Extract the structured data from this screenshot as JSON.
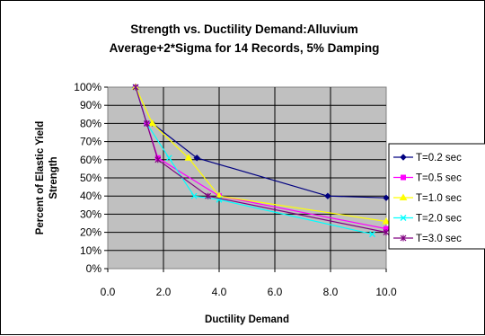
{
  "chart_data": {
    "type": "line",
    "title": "Strength vs. Ductility Demand:Alluvium",
    "subtitle": "Average+2*Sigma for 14 Records, 5% Damping",
    "xlabel": "Ductility Demand",
    "ylabel_line1": "Percent of Elastic Yield",
    "ylabel_line2": "Strength",
    "xlim": [
      0,
      10
    ],
    "ylim": [
      0,
      100
    ],
    "x_ticks": [
      0,
      2,
      4,
      6,
      8,
      10
    ],
    "x_tick_labels": [
      "0.0",
      "2.0",
      "4.0",
      "6.0",
      "8.0",
      "10.0"
    ],
    "y_ticks": [
      0,
      10,
      20,
      30,
      40,
      50,
      60,
      70,
      80,
      90,
      100
    ],
    "y_tick_labels": [
      "0%",
      "10%",
      "20%",
      "30%",
      "40%",
      "50%",
      "60%",
      "70%",
      "80%",
      "90%",
      "100%"
    ],
    "grid": true,
    "plot_background": "#c0c0c0",
    "legend_position": "right",
    "series": [
      {
        "name": "T=0.2 sec",
        "color": "#000080",
        "marker": "diamond",
        "points": [
          [
            1.0,
            100
          ],
          [
            1.4,
            80
          ],
          [
            1.6,
            80
          ],
          [
            3.2,
            61
          ],
          [
            7.9,
            40
          ],
          [
            10.0,
            39
          ]
        ]
      },
      {
        "name": "T=0.5 sec",
        "color": "#ff00ff",
        "marker": "square",
        "points": [
          [
            1.0,
            100
          ],
          [
            1.4,
            80
          ],
          [
            1.8,
            61
          ],
          [
            4.0,
            40
          ],
          [
            10.0,
            22
          ]
        ]
      },
      {
        "name": "T=1.0 sec",
        "color": "#ffff00",
        "marker": "triangle",
        "points": [
          [
            1.0,
            100
          ],
          [
            1.6,
            80
          ],
          [
            2.9,
            61
          ],
          [
            4.0,
            40
          ],
          [
            10.0,
            26
          ]
        ]
      },
      {
        "name": "T=2.0 sec",
        "color": "#00ffff",
        "marker": "x",
        "points": [
          [
            1.0,
            100
          ],
          [
            1.4,
            80
          ],
          [
            2.2,
            61
          ],
          [
            3.1,
            40
          ],
          [
            4.0,
            38
          ],
          [
            9.5,
            19
          ]
        ]
      },
      {
        "name": "T=3.0 sec",
        "color": "#800080",
        "marker": "star",
        "points": [
          [
            1.0,
            100
          ],
          [
            1.4,
            80
          ],
          [
            1.8,
            60
          ],
          [
            3.6,
            40
          ],
          [
            10.0,
            20
          ]
        ]
      }
    ]
  }
}
